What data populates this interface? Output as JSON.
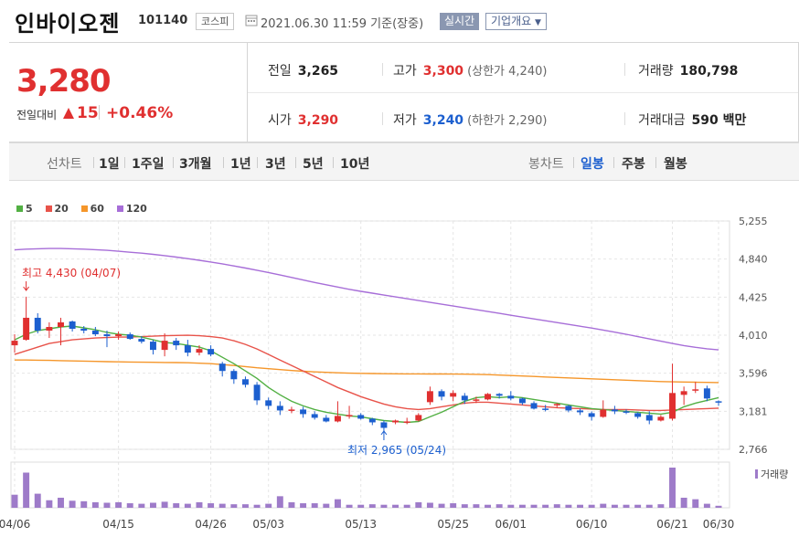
{
  "header": {
    "name": "인바이오젠",
    "code": "101140",
    "market": "코스피",
    "datetime": "2021.06.30 11:59",
    "basis": "기준(장중)",
    "realtime_button": "실시간",
    "company_button": "기업개요"
  },
  "quote": {
    "price": "3,280",
    "change_label": "전일대비",
    "change_amount": "15",
    "change_pct": "+0.46%",
    "prev_label": "전일",
    "prev": "3,265",
    "open_label": "시가",
    "open": "3,290",
    "high_label": "고가",
    "high": "3,300",
    "upper_limit": "(상한가 4,240)",
    "low_label": "저가",
    "low": "3,240",
    "lower_limit": "(하한가 2,290)",
    "volume_label": "거래량",
    "volume": "180,798",
    "amount_label": "거래대금",
    "amount": "590 백만"
  },
  "period_bar": {
    "line_label": "선차트",
    "line_items": [
      "1일",
      "1주일",
      "3개월",
      "1년",
      "3년",
      "5년",
      "10년"
    ],
    "candle_label": "봉차트",
    "candle_items": [
      "일봉",
      "주봉",
      "월봉"
    ],
    "candle_selected": "일봉"
  },
  "colors": {
    "up": "#e03030",
    "down": "#1c5fcf",
    "ma5": "#52b043",
    "ma20": "#e8534a",
    "ma60": "#f5962a",
    "ma120": "#a76ed8",
    "volume": "#9e7bc9"
  },
  "chart_data": {
    "type": "candlestick",
    "legend": [
      {
        "name": "5",
        "color": "#52b043"
      },
      {
        "name": "20",
        "color": "#e8534a"
      },
      {
        "name": "60",
        "color": "#f5962a"
      },
      {
        "name": "120",
        "color": "#a76ed8"
      }
    ],
    "y_ticks": [
      "5,255",
      "4,840",
      "4,425",
      "4,010",
      "3,596",
      "3,181",
      "2,766"
    ],
    "ylim": [
      2766,
      5255
    ],
    "x_labels": [
      "04/06",
      "04/15",
      "04/26",
      "05/03",
      "05/13",
      "05/25",
      "06/01",
      "06/10",
      "06/21",
      "06/30"
    ],
    "max_annotation": "최고 4,430 (04/07)",
    "min_annotation": "최저 2,965 (05/24)",
    "volume_label": "거래량",
    "candles": [
      {
        "o": 3900,
        "h": 4020,
        "l": 3820,
        "c": 3950
      },
      {
        "o": 3960,
        "h": 4430,
        "l": 3950,
        "c": 4200
      },
      {
        "o": 4200,
        "h": 4250,
        "l": 4030,
        "c": 4060
      },
      {
        "o": 4060,
        "h": 4150,
        "l": 3980,
        "c": 4100
      },
      {
        "o": 4100,
        "h": 4200,
        "l": 3900,
        "c": 4150
      },
      {
        "o": 4160,
        "h": 4170,
        "l": 4050,
        "c": 4080
      },
      {
        "o": 4080,
        "h": 4110,
        "l": 4030,
        "c": 4060
      },
      {
        "o": 4060,
        "h": 4100,
        "l": 4000,
        "c": 4020
      },
      {
        "o": 4020,
        "h": 4060,
        "l": 3880,
        "c": 4000
      },
      {
        "o": 4000,
        "h": 4050,
        "l": 3960,
        "c": 4020
      },
      {
        "o": 4020,
        "h": 4040,
        "l": 3960,
        "c": 3970
      },
      {
        "o": 3970,
        "h": 4000,
        "l": 3920,
        "c": 3940
      },
      {
        "o": 3940,
        "h": 3960,
        "l": 3800,
        "c": 3850
      },
      {
        "o": 3850,
        "h": 4030,
        "l": 3780,
        "c": 3950
      },
      {
        "o": 3950,
        "h": 3980,
        "l": 3850,
        "c": 3900
      },
      {
        "o": 3900,
        "h": 3960,
        "l": 3780,
        "c": 3820
      },
      {
        "o": 3820,
        "h": 3900,
        "l": 3790,
        "c": 3860
      },
      {
        "o": 3860,
        "h": 3900,
        "l": 3780,
        "c": 3800
      },
      {
        "o": 3700,
        "h": 3720,
        "l": 3560,
        "c": 3620
      },
      {
        "o": 3620,
        "h": 3640,
        "l": 3480,
        "c": 3530
      },
      {
        "o": 3530,
        "h": 3560,
        "l": 3440,
        "c": 3470
      },
      {
        "o": 3470,
        "h": 3500,
        "l": 3250,
        "c": 3300
      },
      {
        "o": 3300,
        "h": 3330,
        "l": 3200,
        "c": 3240
      },
      {
        "o": 3240,
        "h": 3290,
        "l": 3140,
        "c": 3190
      },
      {
        "o": 3190,
        "h": 3230,
        "l": 3160,
        "c": 3200
      },
      {
        "o": 3200,
        "h": 3230,
        "l": 3110,
        "c": 3150
      },
      {
        "o": 3150,
        "h": 3180,
        "l": 3090,
        "c": 3110
      },
      {
        "o": 3110,
        "h": 3140,
        "l": 3060,
        "c": 3070
      },
      {
        "o": 3070,
        "h": 3290,
        "l": 3060,
        "c": 3130
      },
      {
        "o": 3130,
        "h": 3240,
        "l": 3100,
        "c": 3140
      },
      {
        "o": 3140,
        "h": 3160,
        "l": 3090,
        "c": 3100
      },
      {
        "o": 3100,
        "h": 3110,
        "l": 3030,
        "c": 3060
      },
      {
        "o": 3060,
        "h": 3080,
        "l": 2965,
        "c": 3000
      },
      {
        "o": 3060,
        "h": 3090,
        "l": 3040,
        "c": 3080
      },
      {
        "o": 3060,
        "h": 3110,
        "l": 3040,
        "c": 3070
      },
      {
        "o": 3080,
        "h": 3160,
        "l": 3070,
        "c": 3140
      },
      {
        "o": 3280,
        "h": 3450,
        "l": 3250,
        "c": 3400
      },
      {
        "o": 3400,
        "h": 3420,
        "l": 3300,
        "c": 3340
      },
      {
        "o": 3340,
        "h": 3410,
        "l": 3290,
        "c": 3380
      },
      {
        "o": 3350,
        "h": 3380,
        "l": 3260,
        "c": 3300
      },
      {
        "o": 3300,
        "h": 3340,
        "l": 3270,
        "c": 3310
      },
      {
        "o": 3310,
        "h": 3380,
        "l": 3300,
        "c": 3370
      },
      {
        "o": 3370,
        "h": 3380,
        "l": 3320,
        "c": 3350
      },
      {
        "o": 3350,
        "h": 3400,
        "l": 3300,
        "c": 3320
      },
      {
        "o": 3320,
        "h": 3330,
        "l": 3250,
        "c": 3270
      },
      {
        "o": 3270,
        "h": 3290,
        "l": 3200,
        "c": 3210
      },
      {
        "o": 3210,
        "h": 3250,
        "l": 3180,
        "c": 3200
      },
      {
        "o": 3250,
        "h": 3270,
        "l": 3220,
        "c": 3260
      },
      {
        "o": 3240,
        "h": 3250,
        "l": 3170,
        "c": 3190
      },
      {
        "o": 3190,
        "h": 3210,
        "l": 3140,
        "c": 3170
      },
      {
        "o": 3160,
        "h": 3180,
        "l": 3080,
        "c": 3120
      },
      {
        "o": 3120,
        "h": 3300,
        "l": 3110,
        "c": 3200
      },
      {
        "o": 3200,
        "h": 3240,
        "l": 3150,
        "c": 3180
      },
      {
        "o": 3180,
        "h": 3200,
        "l": 3150,
        "c": 3170
      },
      {
        "o": 3160,
        "h": 3170,
        "l": 3100,
        "c": 3120
      },
      {
        "o": 3140,
        "h": 3180,
        "l": 3040,
        "c": 3080
      },
      {
        "o": 3080,
        "h": 3140,
        "l": 3070,
        "c": 3120
      },
      {
        "o": 3100,
        "h": 3700,
        "l": 3080,
        "c": 3380
      },
      {
        "o": 3360,
        "h": 3450,
        "l": 3250,
        "c": 3400
      },
      {
        "o": 3410,
        "h": 3500,
        "l": 3380,
        "c": 3420
      },
      {
        "o": 3430,
        "h": 3460,
        "l": 3290,
        "c": 3320
      },
      {
        "o": 3290,
        "h": 3300,
        "l": 3240,
        "c": 3280
      }
    ],
    "ma5": [
      3960,
      4020,
      4060,
      4080,
      4100,
      4110,
      4090,
      4070,
      4040,
      4020,
      4010,
      3990,
      3960,
      3930,
      3920,
      3900,
      3880,
      3840,
      3770,
      3700,
      3620,
      3540,
      3440,
      3360,
      3290,
      3240,
      3200,
      3170,
      3150,
      3130,
      3120,
      3100,
      3080,
      3070,
      3060,
      3070,
      3120,
      3170,
      3230,
      3290,
      3330,
      3340,
      3330,
      3340,
      3330,
      3310,
      3290,
      3270,
      3250,
      3230,
      3210,
      3200,
      3190,
      3180,
      3170,
      3160,
      3150,
      3170,
      3230,
      3270,
      3300,
      3330
    ],
    "ma20": [
      3800,
      3840,
      3880,
      3920,
      3940,
      3960,
      3970,
      3980,
      3985,
      3990,
      3990,
      3995,
      4000,
      4005,
      4008,
      4010,
      4005,
      3995,
      3980,
      3950,
      3910,
      3860,
      3800,
      3740,
      3680,
      3620,
      3560,
      3500,
      3440,
      3390,
      3340,
      3300,
      3260,
      3230,
      3210,
      3200,
      3210,
      3230,
      3250,
      3270,
      3280,
      3280,
      3270,
      3260,
      3250,
      3240,
      3230,
      3220,
      3215,
      3210,
      3205,
      3200,
      3200,
      3200,
      3195,
      3190,
      3190,
      3195,
      3200,
      3205,
      3210,
      3215
    ],
    "ma60": [
      3740,
      3740,
      3738,
      3736,
      3733,
      3730,
      3728,
      3725,
      3722,
      3720,
      3718,
      3716,
      3715,
      3713,
      3712,
      3710,
      3705,
      3700,
      3690,
      3680,
      3668,
      3655,
      3645,
      3635,
      3625,
      3617,
      3610,
      3605,
      3600,
      3596,
      3594,
      3592,
      3590,
      3589,
      3588,
      3588,
      3587,
      3587,
      3586,
      3585,
      3583,
      3580,
      3575,
      3570,
      3565,
      3560,
      3555,
      3550,
      3545,
      3540,
      3535,
      3530,
      3525,
      3520,
      3515,
      3510,
      3505,
      3502,
      3500,
      3498,
      3496,
      3494
    ],
    "ma120": [
      4940,
      4948,
      4952,
      4955,
      4955,
      4952,
      4948,
      4942,
      4935,
      4925,
      4915,
      4905,
      4892,
      4878,
      4862,
      4845,
      4827,
      4808,
      4788,
      4765,
      4742,
      4718,
      4693,
      4667,
      4640,
      4612,
      4585,
      4560,
      4535,
      4510,
      4488,
      4468,
      4448,
      4428,
      4408,
      4388,
      4368,
      4348,
      4328,
      4308,
      4288,
      4268,
      4248,
      4228,
      4208,
      4188,
      4168,
      4148,
      4128,
      4108,
      4088,
      4066,
      4043,
      4020,
      3995,
      3970,
      3945,
      3920,
      3897,
      3878,
      3862,
      3850
    ],
    "volumes": [
      260,
      700,
      280,
      150,
      200,
      140,
      130,
      110,
      100,
      110,
      90,
      80,
      100,
      120,
      90,
      80,
      110,
      90,
      80,
      70,
      70,
      60,
      80,
      230,
      110,
      90,
      90,
      80,
      170,
      60,
      60,
      70,
      60,
      60,
      60,
      110,
      100,
      80,
      90,
      70,
      70,
      60,
      70,
      60,
      60,
      60,
      60,
      70,
      60,
      60,
      60,
      80,
      60,
      60,
      60,
      60,
      70,
      800,
      200,
      170,
      80,
      40
    ]
  }
}
